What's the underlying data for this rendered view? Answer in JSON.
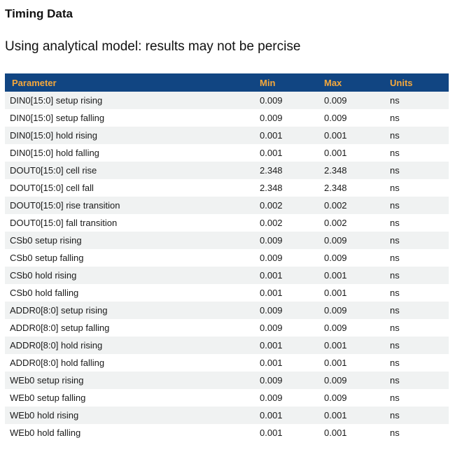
{
  "page": {
    "title": "Timing Data",
    "subtitle": "Using analytical model: results may not be percise"
  },
  "table": {
    "columns": [
      "Parameter",
      "Min",
      "Max",
      "Units"
    ],
    "rows": [
      {
        "parameter": "DIN0[15:0] setup rising",
        "min": "0.009",
        "max": "0.009",
        "units": "ns"
      },
      {
        "parameter": "DIN0[15:0] setup falling",
        "min": "0.009",
        "max": "0.009",
        "units": "ns"
      },
      {
        "parameter": "DIN0[15:0] hold rising",
        "min": "0.001",
        "max": "0.001",
        "units": "ns"
      },
      {
        "parameter": "DIN0[15:0] hold falling",
        "min": "0.001",
        "max": "0.001",
        "units": "ns"
      },
      {
        "parameter": "DOUT0[15:0] cell rise",
        "min": "2.348",
        "max": "2.348",
        "units": "ns"
      },
      {
        "parameter": "DOUT0[15:0] cell fall",
        "min": "2.348",
        "max": "2.348",
        "units": "ns"
      },
      {
        "parameter": "DOUT0[15:0] rise transition",
        "min": "0.002",
        "max": "0.002",
        "units": "ns"
      },
      {
        "parameter": "DOUT0[15:0] fall transition",
        "min": "0.002",
        "max": "0.002",
        "units": "ns"
      },
      {
        "parameter": "CSb0 setup rising",
        "min": "0.009",
        "max": "0.009",
        "units": "ns"
      },
      {
        "parameter": "CSb0 setup falling",
        "min": "0.009",
        "max": "0.009",
        "units": "ns"
      },
      {
        "parameter": "CSb0 hold rising",
        "min": "0.001",
        "max": "0.001",
        "units": "ns"
      },
      {
        "parameter": "CSb0 hold falling",
        "min": "0.001",
        "max": "0.001",
        "units": "ns"
      },
      {
        "parameter": "ADDR0[8:0] setup rising",
        "min": "0.009",
        "max": "0.009",
        "units": "ns"
      },
      {
        "parameter": "ADDR0[8:0] setup falling",
        "min": "0.009",
        "max": "0.009",
        "units": "ns"
      },
      {
        "parameter": "ADDR0[8:0] hold rising",
        "min": "0.001",
        "max": "0.001",
        "units": "ns"
      },
      {
        "parameter": "ADDR0[8:0] hold falling",
        "min": "0.001",
        "max": "0.001",
        "units": "ns"
      },
      {
        "parameter": "WEb0 setup rising",
        "min": "0.009",
        "max": "0.009",
        "units": "ns"
      },
      {
        "parameter": "WEb0 setup falling",
        "min": "0.009",
        "max": "0.009",
        "units": "ns"
      },
      {
        "parameter": "WEb0 hold rising",
        "min": "0.001",
        "max": "0.001",
        "units": "ns"
      },
      {
        "parameter": "WEb0 hold falling",
        "min": "0.001",
        "max": "0.001",
        "units": "ns"
      }
    ]
  },
  "colors": {
    "header_background": "#114582",
    "header_text": "#F5A83C",
    "row_stripe": "#F0F2F2",
    "row_text": "#1A1A1A"
  }
}
